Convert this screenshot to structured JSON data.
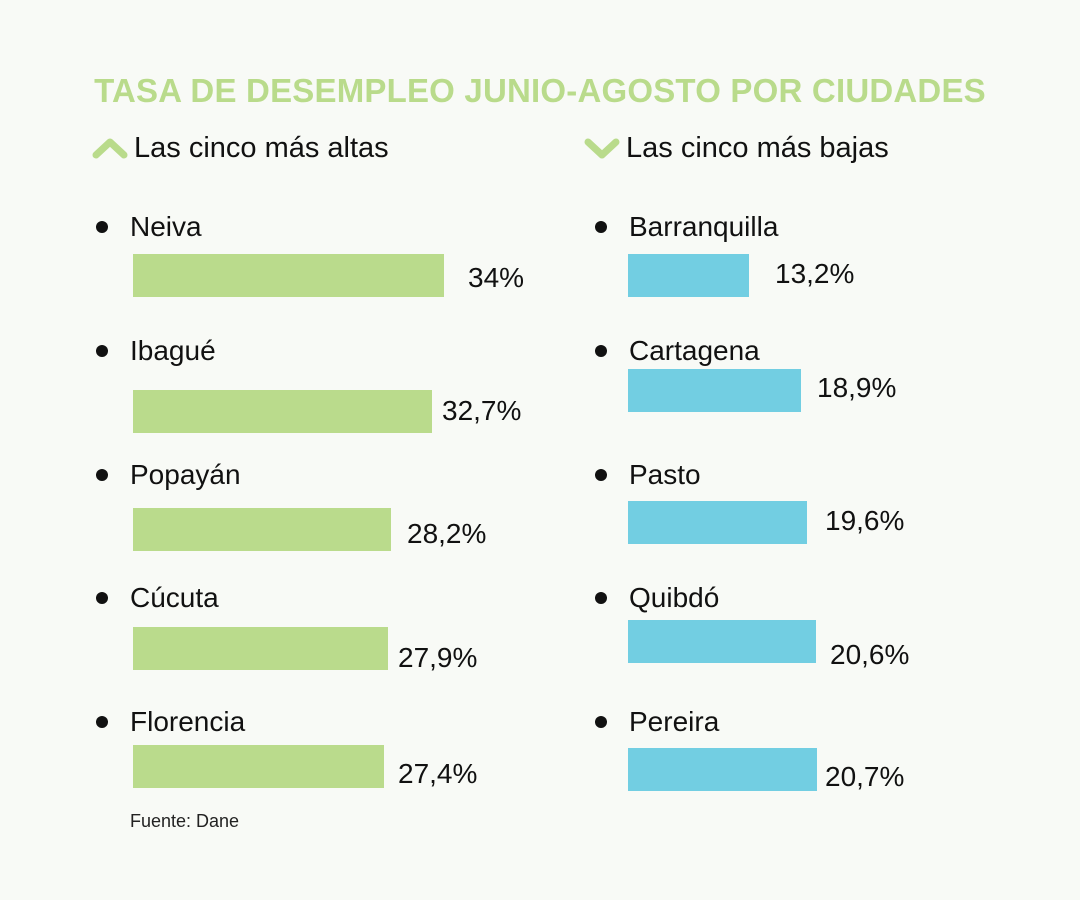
{
  "title": "TASA DE DESEMPLEO JUNIO-AGOSTO POR CIUDADES",
  "source": "Fuente: Dane",
  "colors": {
    "title": "#b9db8b",
    "high_bar": "#badb8c",
    "low_bar": "#72cee2",
    "icon": "#b9db8b"
  },
  "chart_data": [
    {
      "type": "bar",
      "title": "Las cinco más altas",
      "icon": "chevron-up-icon",
      "unit": "%",
      "categories": [
        "Neiva",
        "Ibagué",
        "Popayán",
        "Cúcuta",
        "Florencia"
      ],
      "values": [
        34,
        32.7,
        28.2,
        27.9,
        27.4
      ],
      "labels": [
        "34%",
        "32,7%",
        "28,2%",
        "27,9%",
        "27,4%"
      ]
    },
    {
      "type": "bar",
      "title": "Las cinco más bajas",
      "icon": "chevron-down-icon",
      "unit": "%",
      "categories": [
        "Barranquilla",
        "Cartagena",
        "Pasto",
        "Quibdó",
        "Pereira"
      ],
      "values": [
        13.2,
        18.9,
        19.6,
        20.6,
        20.7
      ],
      "labels": [
        "13,2%",
        "18,9%",
        "19,6%",
        "20,6%",
        "20,7%"
      ]
    }
  ]
}
